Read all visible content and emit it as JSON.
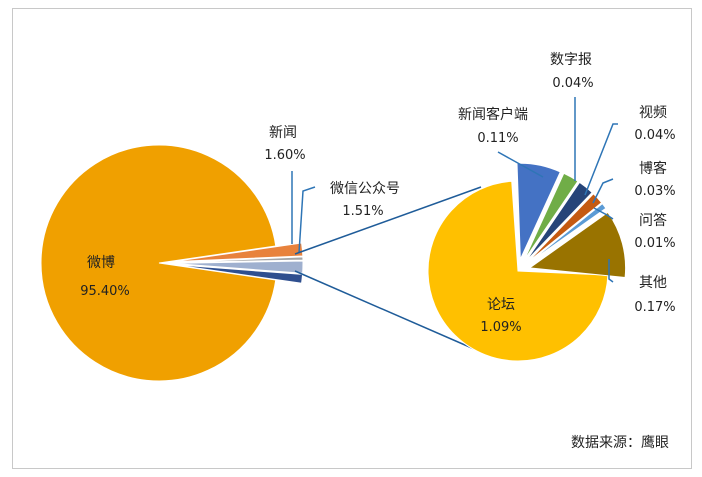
{
  "chart_data": {
    "type": "bar-of-pie",
    "primary": {
      "slices": [
        {
          "name": "微博",
          "label": "95.40%",
          "value": 95.4,
          "color": "#F0A000"
        },
        {
          "name": "新闻",
          "label": "1.60%",
          "value": 1.6,
          "color": "#E8823C"
        },
        {
          "name": "",
          "label": "",
          "value": 0.4,
          "color": "#A5A5A5"
        },
        {
          "name": "微信公众号",
          "label": "1.51%",
          "value": 1.51,
          "color": "#9FB0CF"
        },
        {
          "name": "",
          "label": "",
          "value": 1.09,
          "color": "#2F4F8F"
        }
      ]
    },
    "secondary": {
      "slices": [
        {
          "name": "论坛",
          "label": "1.09%",
          "value": 1.09,
          "color": "#FFC000"
        },
        {
          "name": "新闻客户端",
          "label": "0.11%",
          "value": 0.11,
          "color": "#4472C4"
        },
        {
          "name": "数字报",
          "label": "0.04%",
          "value": 0.04,
          "color": "#70AD47"
        },
        {
          "name": "视频",
          "label": "0.04%",
          "value": 0.04,
          "color": "#264478"
        },
        {
          "name": "博客",
          "label": "0.03%",
          "value": 0.03,
          "color": "#C55A11"
        },
        {
          "name": "问答",
          "label": "0.01%",
          "value": 0.01,
          "color": "#5B9BD5"
        },
        {
          "name": "其他",
          "label": "0.17%",
          "value": 0.17,
          "color": "#997300"
        }
      ]
    },
    "connector_color": "#1F5C99",
    "leader_color": "#2E75B6"
  },
  "footer": {
    "source": "数据来源：鹰眼"
  }
}
